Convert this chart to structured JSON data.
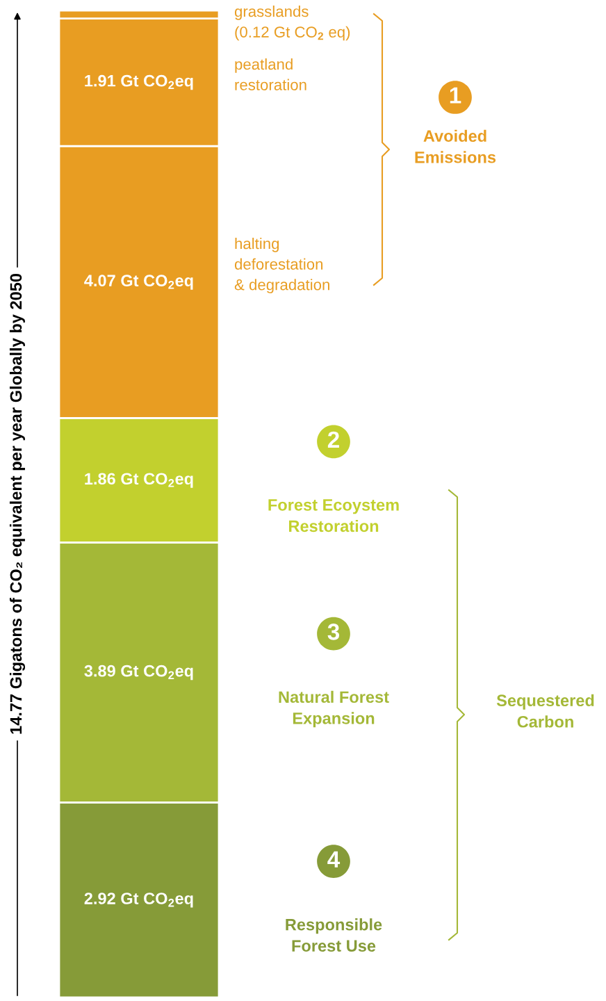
{
  "chart_data": {
    "type": "bar",
    "stacked": true,
    "categories": [
      null
    ],
    "ylabel": "14.77 Gigatons of CO₂ equivalent per year Globally by 2050",
    "ylim": [
      0,
      14.77
    ],
    "tick_labels": false,
    "series": [
      {
        "name": "Responsible\nForest Use",
        "color": "#869b38",
        "values": [
          2.92
        ],
        "value_labels": [
          "2.92 Gt CO$_{2}$eq"
        ]
      },
      {
        "name": "Natural Forest\nExpansion",
        "color": "#a4b837",
        "values": [
          3.89
        ],
        "value_labels": [
          "3.89 Gt CO$_{2}$eq"
        ]
      },
      {
        "name": "Forest Ecoystem\nRestoration",
        "color": "#c2d02e",
        "values": [
          1.86
        ],
        "value_labels": [
          "1.86 Gt CO$_{2}$eq"
        ]
      },
      {
        "name": "halting\ndeforestation\n& degradation",
        "color": "#e89d22",
        "values": [
          4.07
        ],
        "value_labels": [
          "4.07 Gt CO$_{2}$eq"
        ]
      },
      {
        "name": "peatland\nrestoration",
        "color": "#e89d22",
        "values": [
          1.91
        ],
        "value_labels": [
          "1.91 Gt CO$_{2}$eq"
        ]
      },
      {
        "name": "grasslands\n(0.12 Gt CO$_{2}$ eq)",
        "color": "#e89d22",
        "values": [
          0.12
        ],
        "value_labels": [
          null
        ]
      }
    ],
    "annotations": [
      "1",
      "Avoided\nEmissions",
      "2",
      "3",
      "4",
      "Sequestered\nCarbon"
    ]
  }
}
